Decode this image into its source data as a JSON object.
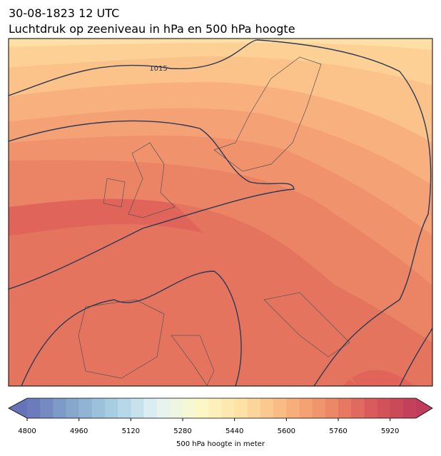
{
  "header": {
    "date": "30-08-1823 12 UTC",
    "title": "Luchtdruk op zeeniveau in hPa en 500 hPa hoogte"
  },
  "map": {
    "contour_labels": [
      "1015"
    ]
  },
  "colorbar": {
    "label": "500 hPa hoogte in meter",
    "lim": [
      4800,
      6000
    ],
    "ticks": [
      4800,
      4960,
      5120,
      5280,
      5440,
      5600,
      5760,
      5920
    ]
  }
}
